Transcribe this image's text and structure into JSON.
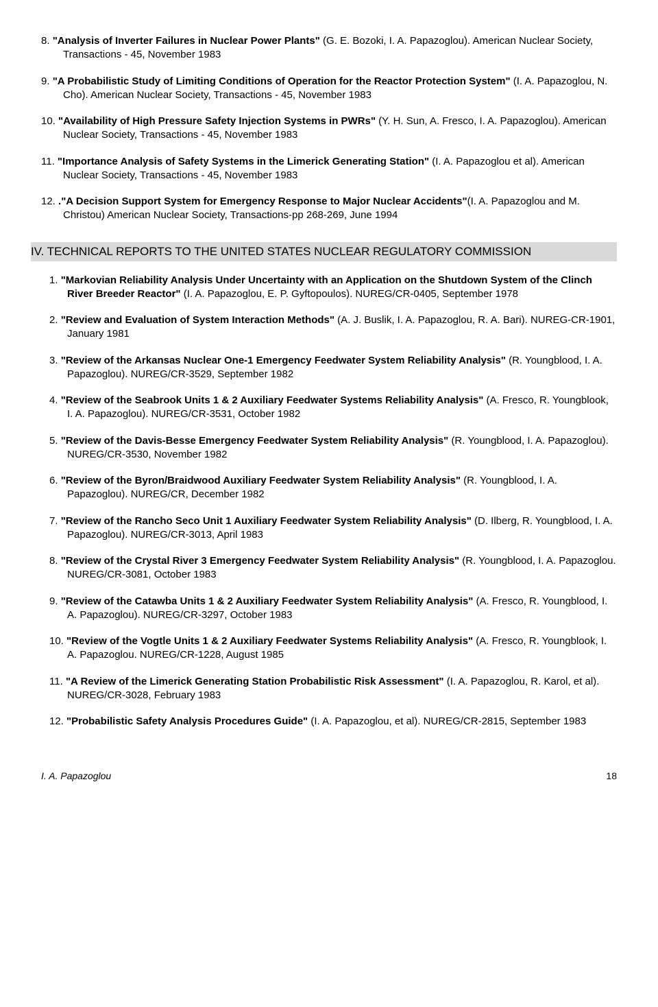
{
  "top_entries": [
    {
      "num": "8.",
      "title": "\"Analysis of Inverter Failures in Nuclear Power Plants\"",
      "rest": "  (G. E. Bozoki, I. A. Papazoglou).  American Nuclear Society, Transactions - 45, November 1983"
    },
    {
      "num": "9.",
      "title": "\"A Probabilistic Study of Limiting Conditions of Operation for the Reactor Protection System\"",
      "rest": "  (I. A. Papazoglou, N. Cho).  American Nuclear Society, Transactions - 45, November 1983"
    },
    {
      "num": "10.",
      "title": "\"Availability of High Pressure Safety Injection Systems in PWRs\"",
      "rest": "  (Y. H. Sun, A. Fresco, I. A. Papazoglou).  American Nuclear Society, Transactions - 45, November 1983"
    },
    {
      "num": "11.",
      "title": "\"Importance Analysis of Safety Systems in the Limerick Generating Station\"",
      "rest": "  (I. A. Papazoglou et al).  American Nuclear Society, Transactions - 45, November 1983"
    },
    {
      "num": "12.",
      "title": ".\"A Decision Support System for Emergency Response to Major Nuclear Accidents\"",
      "rest": "(I. A. Papazoglou and M. Christou)   American Nuclear Society, Transactions-pp 268-269, June 1994"
    }
  ],
  "section_header": "IV. TECHNICAL REPORTS TO THE UNITED STATES NUCLEAR REGULATORY COMMISSION",
  "iv_entries": [
    {
      "num": "1.",
      "title": "\"Markovian Reliability Analysis Under Uncertainty with an Application on the Shutdown System of the Clinch River Breeder Reactor\"",
      "rest": " (I. A. Papazoglou, E. P. Gyftopoulos).   NUREG/CR-0405, September 1978"
    },
    {
      "num": "2.",
      "title": "\"Review and Evaluation of System Interaction Methods\"",
      "rest": "  (A. J. Buslik, I. A. Papazoglou, R. A. Bari).  NUREG-CR-1901, January 1981"
    },
    {
      "num": "3.",
      "title": "\"Review of the Arkansas Nuclear One-1 Emergency Feedwater System Reliability Analysis\"",
      "rest": "  (R. Youngblood, I. A. Papazoglou).   NUREG/CR-3529, September 1982"
    },
    {
      "num": "4.",
      "title": "\"Review of the Seabrook Units 1 & 2 Auxiliary Feedwater Systems Reliability Analysis\"",
      "rest": "  (A. Fresco, R. Youngblook, I. A. Papazoglou).  NUREG/CR-3531, October 1982"
    },
    {
      "num": "5.",
      "title": "\"Review of the Davis-Besse Emergency Feedwater System Reliability Analysis\"",
      "rest": "  (R. Youngblood, I. A. Papazoglou).  NUREG/CR-3530, November 1982"
    },
    {
      "num": "6.",
      "title": "\"Review of the Byron/Braidwood Auxiliary Feedwater System Reliability Analysis\"",
      "rest": "  (R. Youngblood, I. A. Papazoglou).  NUREG/CR, December 1982"
    },
    {
      "num": "7.",
      "title": "\"Review of the Rancho Seco Unit 1 Auxiliary Feedwater System Reliability Analysis\"",
      "rest": "  (D. Ilberg, R. Youngblood, I. A. Papazoglou).  NUREG/CR-3013, April 1983"
    },
    {
      "num": "8.",
      "title": "\"Review of the Crystal River 3 Emergency Feedwater System Reliability Analysis\"",
      "rest": "  (R. Youngblood, I. A. Papazoglou.  NUREG/CR-3081, October 1983"
    },
    {
      "num": "9.",
      "title": "\"Review of the Catawba Units 1 & 2 Auxiliary Feedwater System Reliability Analysis\"",
      "rest": "  (A. Fresco, R. Youngblood, I. A. Papazoglou).  NUREG/CR-3297, October 1983"
    },
    {
      "num": "10.",
      "title": "\"Review of the Vogtle Units 1 & 2 Auxiliary Feedwater Systems Reliability Analysis\"",
      "rest": "  (A. Fresco, R. Youngblook, I. A. Papazoglou.  NUREG/CR-1228, August 1985"
    },
    {
      "num": "11.",
      "title": "\"A Review of the Limerick Generating Station Probabilistic Risk Assessment\"",
      "rest": "   (I. A. Papazoglou, R. Karol, et al).  NUREG/CR-3028, February 1983"
    },
    {
      "num": "12.",
      "title": "\"Probabilistic Safety Analysis Procedures Guide\"",
      "rest": "  (I. A. Papazoglou, et al).  NUREG/CR-2815, September 1983"
    }
  ],
  "footer_name": "I. A. Papazoglou",
  "footer_page": "18"
}
